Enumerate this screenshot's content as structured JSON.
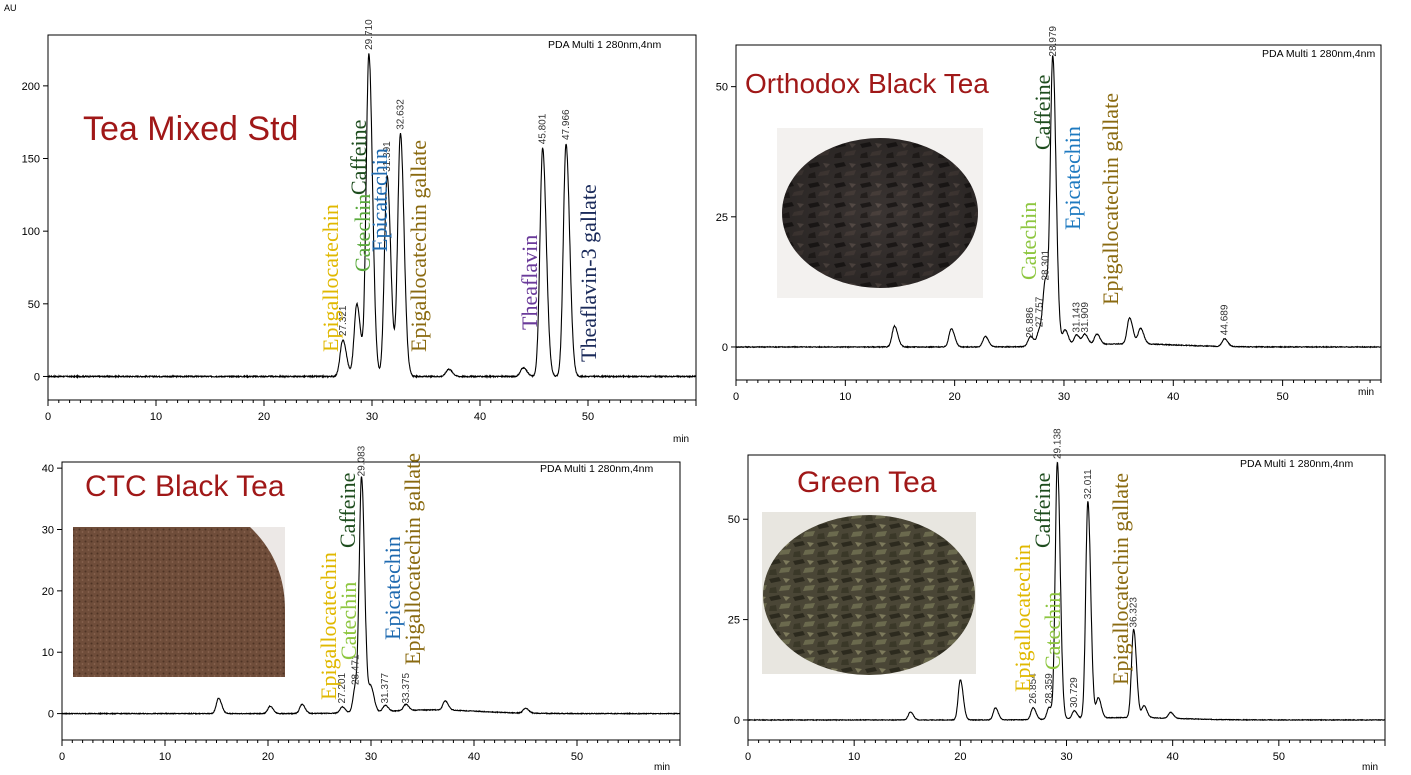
{
  "figure_corner_label": "AU",
  "chart_data": [
    {
      "type": "line",
      "id": "mixed",
      "title": "Tea Mixed Std",
      "header": "PDA Multi 1 280nm,4nm",
      "xlabel": "min",
      "xlim": [
        0,
        60
      ],
      "ylim": [
        -10,
        235
      ],
      "xticks": [
        0,
        10,
        20,
        30,
        40,
        50
      ],
      "yticks": [
        0,
        50,
        100,
        150,
        200
      ],
      "baseline": 0,
      "peaks": [
        {
          "rt": 27.3,
          "height": 25,
          "label": "27.321"
        },
        {
          "rt": 28.6,
          "height": 50
        },
        {
          "rt": 29.71,
          "height": 222,
          "label": "29.710"
        },
        {
          "rt": 31.4,
          "height": 138,
          "label": "31.391"
        },
        {
          "rt": 32.63,
          "height": 167,
          "label": "32.632"
        },
        {
          "rt": 37.1,
          "height": 5
        },
        {
          "rt": 44.0,
          "height": 6
        },
        {
          "rt": 45.801,
          "height": 157,
          "label": "45.801"
        },
        {
          "rt": 47.966,
          "height": 160,
          "label": "47.966"
        }
      ],
      "compounds": [
        {
          "name": "Epigallocatechin",
          "color": "#e0b800"
        },
        {
          "name": "Catechin",
          "color": "#5aaa3c"
        },
        {
          "name": "Caffeine",
          "color": "#1e4d1e"
        },
        {
          "name": "Epicatechin",
          "color": "#1e6ab0"
        },
        {
          "name": "Epigallocatechin gallate",
          "color": "#8a6a10"
        },
        {
          "name": "Theaflavin",
          "color": "#6a3a9a"
        },
        {
          "name": "Theaflavin-3 gallate",
          "color": "#1a2a5a"
        }
      ]
    },
    {
      "type": "line",
      "id": "orthodox",
      "title": "Orthodox Black Tea",
      "header": "PDA Multi 1 280nm,4nm",
      "xlabel": "min",
      "xlim": [
        0,
        59
      ],
      "ylim": [
        -5,
        58
      ],
      "xticks": [
        0,
        10,
        20,
        30,
        40,
        50
      ],
      "yticks": [
        0,
        25,
        50
      ],
      "baseline": 0,
      "peaks": [
        {
          "rt": 14.5,
          "height": 4
        },
        {
          "rt": 19.7,
          "height": 3.5
        },
        {
          "rt": 22.8,
          "height": 2
        },
        {
          "rt": 27.0,
          "height": 1
        },
        {
          "rt": 26.886,
          "height": 1,
          "label": "26.886"
        },
        {
          "rt": 27.757,
          "height": 3,
          "label": "27.757"
        },
        {
          "rt": 28.301,
          "height": 12,
          "label": "28.301"
        },
        {
          "rt": 28.979,
          "height": 55,
          "label": "28.979"
        },
        {
          "rt": 30.1,
          "height": 3
        },
        {
          "rt": 31.143,
          "height": 2,
          "label": "31.143"
        },
        {
          "rt": 31.909,
          "height": 2,
          "label": "31.909"
        },
        {
          "rt": 33.0,
          "height": 2
        },
        {
          "rt": 36.0,
          "height": 5
        },
        {
          "rt": 37.0,
          "height": 3
        },
        {
          "rt": 44.689,
          "height": 1.5,
          "label": "44.689"
        }
      ],
      "compounds": [
        {
          "name": "Catechin",
          "color": "#8dc63f"
        },
        {
          "name": "Caffeine",
          "color": "#1e4d1e"
        },
        {
          "name": "Epicatechin",
          "color": "#1e7ac0"
        },
        {
          "name": "Epigallocatechin gallate",
          "color": "#8a6a10"
        }
      ],
      "photo": "orthodox-tea-leaves"
    },
    {
      "type": "line",
      "id": "ctc",
      "title": "CTC Black Tea",
      "header": "PDA Multi 1 280nm,4nm",
      "xlabel": "min",
      "xlim": [
        0,
        60
      ],
      "ylim": [
        -3,
        41
      ],
      "xticks": [
        0,
        10,
        20,
        30,
        40,
        50
      ],
      "yticks": [
        0,
        10,
        20,
        30,
        40
      ],
      "baseline": 0,
      "peaks": [
        {
          "rt": 15.2,
          "height": 2.5
        },
        {
          "rt": 20.2,
          "height": 1.2
        },
        {
          "rt": 23.3,
          "height": 1.5
        },
        {
          "rt": 27.201,
          "height": 1,
          "label": "27.201"
        },
        {
          "rt": 28.471,
          "height": 4,
          "label": "28.471"
        },
        {
          "rt": 29.083,
          "height": 38,
          "label": "29.083"
        },
        {
          "rt": 30.0,
          "height": 4
        },
        {
          "rt": 31.377,
          "height": 1,
          "label": "31.377"
        },
        {
          "rt": 33.375,
          "height": 1,
          "label": "33.375"
        },
        {
          "rt": 37.2,
          "height": 1.5
        },
        {
          "rt": 45.0,
          "height": 0.8
        }
      ],
      "compounds": [
        {
          "name": "Epigallocatechin",
          "color": "#e0b800"
        },
        {
          "name": "Catechin",
          "color": "#8dc63f"
        },
        {
          "name": "Caffeine",
          "color": "#1e4d1e"
        },
        {
          "name": "Epicatechin",
          "color": "#1e6ab0"
        },
        {
          "name": "Epigallocatechin gallate",
          "color": "#8a6a10"
        }
      ],
      "photo": "ctc-tea-granules"
    },
    {
      "type": "line",
      "id": "green",
      "title": "Green Tea",
      "header": "PDA Multi 1 280nm,4nm",
      "xlabel": "min",
      "xlim": [
        0,
        60
      ],
      "ylim": [
        -3,
        66
      ],
      "xticks": [
        0,
        10,
        20,
        30,
        40,
        50
      ],
      "yticks": [
        0,
        25,
        50
      ],
      "baseline": 0,
      "peaks": [
        {
          "rt": 15.3,
          "height": 2
        },
        {
          "rt": 20.0,
          "height": 10
        },
        {
          "rt": 23.3,
          "height": 3
        },
        {
          "rt": 26.854,
          "height": 3,
          "label": "26.854"
        },
        {
          "rt": 28.359,
          "height": 3,
          "label": "28.359"
        },
        {
          "rt": 29.138,
          "height": 64,
          "label": "29.138"
        },
        {
          "rt": 30.729,
          "height": 2,
          "label": "30.729"
        },
        {
          "rt": 32.011,
          "height": 54,
          "label": "32.011"
        },
        {
          "rt": 33.0,
          "height": 5
        },
        {
          "rt": 36.323,
          "height": 22,
          "label": "36.323"
        },
        {
          "rt": 37.3,
          "height": 3
        },
        {
          "rt": 39.8,
          "height": 1.5
        }
      ],
      "compounds": [
        {
          "name": "Epigallocatechin",
          "color": "#e0b800"
        },
        {
          "name": "Catechin",
          "color": "#8dc63f"
        },
        {
          "name": "Caffeine",
          "color": "#1e4d1e"
        },
        {
          "name": "Epigallocatechin gallate",
          "color": "#8a6a10"
        }
      ],
      "photo": "green-tea-leaves"
    }
  ]
}
